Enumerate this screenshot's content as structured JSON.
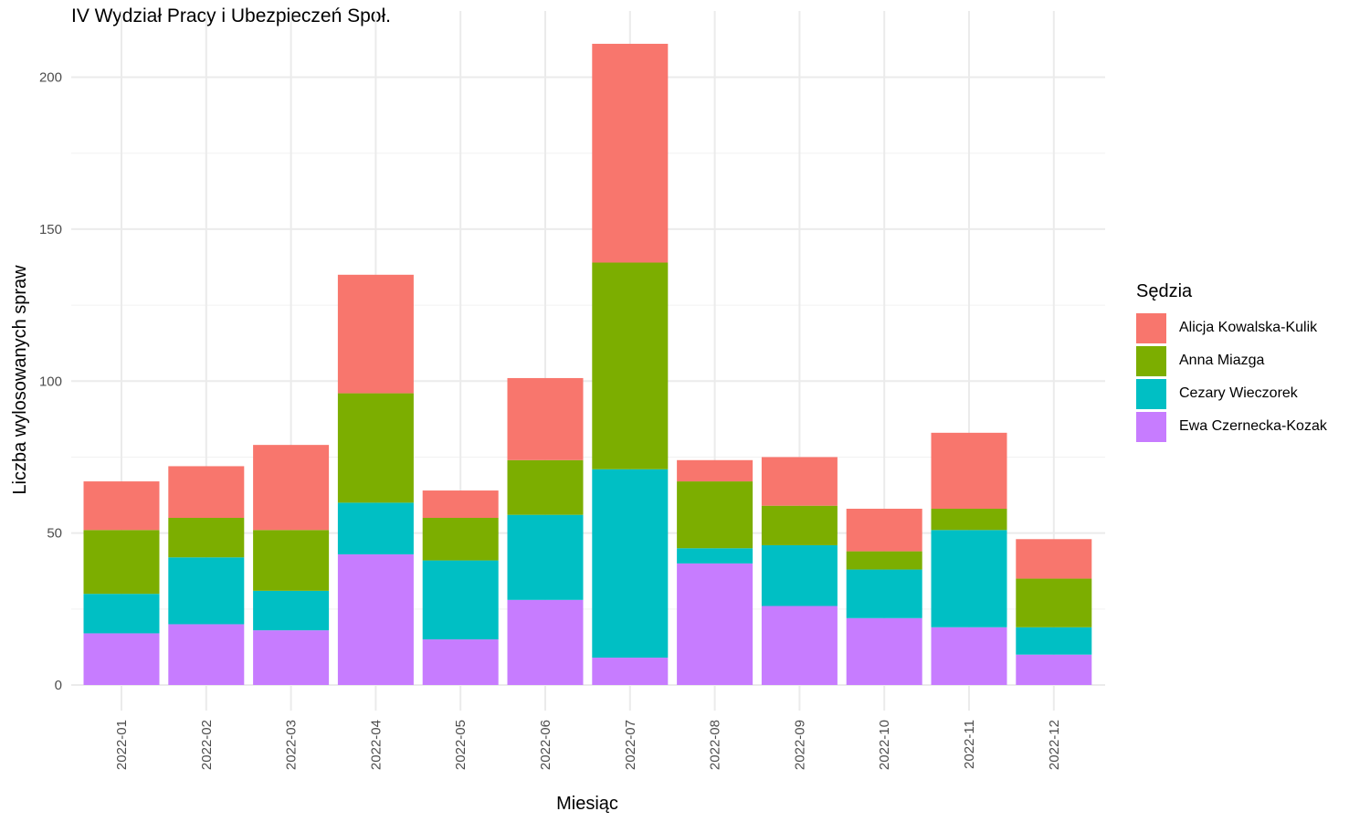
{
  "title": "IV Wydział Pracy i Ubezpieczeń Społ.",
  "chart_data": {
    "type": "bar",
    "stacked": true,
    "title": "IV Wydział Pracy i Ubezpieczeń Społ.",
    "xlabel": "Miesiąc",
    "ylabel": "Liczba wylosowanych spraw",
    "ylim": [
      0,
      220
    ],
    "yticks": [
      0,
      50,
      100,
      150,
      200
    ],
    "grid": true,
    "legend_title": "Sędzia",
    "legend_position": "right",
    "categories": [
      "2022-01",
      "2022-02",
      "2022-03",
      "2022-04",
      "2022-05",
      "2022-06",
      "2022-07",
      "2022-08",
      "2022-09",
      "2022-10",
      "2022-11",
      "2022-12"
    ],
    "series": [
      {
        "name": "Ewa Czernecka-Kozak",
        "color": "#C77CFF",
        "values": [
          17,
          20,
          18,
          43,
          15,
          28,
          9,
          40,
          26,
          22,
          19,
          10
        ]
      },
      {
        "name": "Cezary Wieczorek",
        "color": "#00BFC4",
        "values": [
          13,
          22,
          13,
          17,
          26,
          28,
          62,
          5,
          20,
          16,
          32,
          9
        ]
      },
      {
        "name": "Anna Miazga",
        "color": "#7CAE00",
        "values": [
          21,
          13,
          20,
          36,
          14,
          18,
          68,
          22,
          13,
          6,
          7,
          16
        ]
      },
      {
        "name": "Alicja Kowalska-Kulik",
        "color": "#F8766D",
        "values": [
          16,
          17,
          28,
          39,
          9,
          27,
          72,
          7,
          16,
          14,
          25,
          13
        ]
      }
    ],
    "legend_order": [
      "Alicja Kowalska-Kulik",
      "Anna Miazga",
      "Cezary Wieczorek",
      "Ewa Czernecka-Kozak"
    ]
  }
}
